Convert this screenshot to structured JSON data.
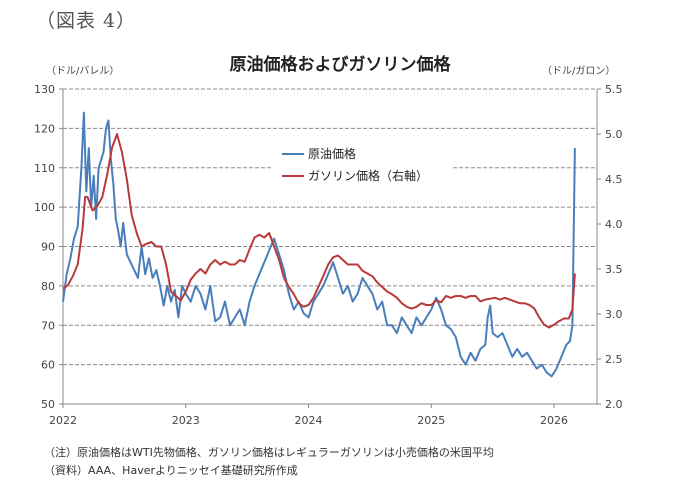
{
  "figure_label": "（図表 4）",
  "notes": {
    "note": "（注）原油価格はWTI先物価格、ガソリン価格はレギュラーガソリンは小売価格の米国平均",
    "source": "（資料）AAA、Haverよりニッセイ基礎研究所作成"
  },
  "chart_data": {
    "type": "line",
    "title": "原油価格およびガソリン価格",
    "ylabel_left": "（ドル/バレル）",
    "ylabel_right": "（ドル/ガロン）",
    "xlabel": "",
    "ylim_left": [
      50,
      130
    ],
    "ylim_right": [
      2.0,
      5.5
    ],
    "yticks_left": [
      "50",
      "60",
      "70",
      "80",
      "90",
      "100",
      "110",
      "120",
      "130"
    ],
    "yticks_right": [
      "2.0",
      "2.5",
      "3.0",
      "3.5",
      "4.0",
      "4.5",
      "5.0",
      "5.5"
    ],
    "xlim": [
      2022.0,
      2026.35
    ],
    "xticks": [
      "2022",
      "2023",
      "2024",
      "2025",
      "2026"
    ],
    "grid": true,
    "legend_position": "top-center",
    "series": [
      {
        "name": "原油価格",
        "axis": "left",
        "color": "#4a7ebb",
        "x": [
          2022.0,
          2022.03,
          2022.06,
          2022.09,
          2022.12,
          2022.15,
          2022.17,
          2022.19,
          2022.21,
          2022.23,
          2022.25,
          2022.27,
          2022.29,
          2022.31,
          2022.33,
          2022.35,
          2022.37,
          2022.39,
          2022.41,
          2022.43,
          2022.45,
          2022.47,
          2022.49,
          2022.52,
          2022.55,
          2022.58,
          2022.61,
          2022.64,
          2022.67,
          2022.7,
          2022.73,
          2022.76,
          2022.79,
          2022.82,
          2022.85,
          2022.88,
          2022.91,
          2022.94,
          2022.97,
          2023.0,
          2023.04,
          2023.08,
          2023.12,
          2023.16,
          2023.2,
          2023.24,
          2023.28,
          2023.32,
          2023.36,
          2023.4,
          2023.44,
          2023.48,
          2023.52,
          2023.56,
          2023.6,
          2023.64,
          2023.68,
          2023.72,
          2023.76,
          2023.8,
          2023.84,
          2023.88,
          2023.92,
          2023.96,
          2024.0,
          2024.04,
          2024.08,
          2024.12,
          2024.16,
          2024.2,
          2024.24,
          2024.28,
          2024.32,
          2024.36,
          2024.4,
          2024.44,
          2024.48,
          2024.52,
          2024.56,
          2024.6,
          2024.64,
          2024.68,
          2024.72,
          2024.76,
          2024.8,
          2024.84,
          2024.88,
          2024.92,
          2024.96,
          2025.0,
          2025.04,
          2025.08,
          2025.12,
          2025.16,
          2025.2,
          2025.24,
          2025.28,
          2025.32,
          2025.36,
          2025.4,
          2025.44,
          2025.46,
          2025.48,
          2025.5,
          2025.54,
          2025.58,
          2025.62,
          2025.66,
          2025.7,
          2025.74,
          2025.78,
          2025.82,
          2025.86,
          2025.9,
          2025.94,
          2025.98,
          2026.02,
          2026.06,
          2026.1,
          2026.13,
          2026.15,
          2026.17
        ],
        "values": [
          76,
          83,
          87,
          92,
          95,
          110,
          124,
          104,
          115,
          100,
          108,
          97,
          110,
          112,
          114,
          120,
          122,
          112,
          106,
          97,
          94,
          90,
          96,
          88,
          86,
          84,
          82,
          90,
          83,
          87,
          82,
          84,
          80,
          75,
          80,
          76,
          79,
          72,
          80,
          78,
          76,
          80,
          78,
          74,
          80,
          71,
          72,
          76,
          70,
          72,
          74,
          70,
          76,
          80,
          83,
          86,
          89,
          92,
          88,
          84,
          78,
          74,
          76,
          73,
          72,
          76,
          78,
          80,
          83,
          86,
          82,
          78,
          80,
          76,
          78,
          82,
          80,
          78,
          74,
          76,
          70,
          70,
          68,
          72,
          70,
          68,
          72,
          70,
          72,
          74,
          77,
          74,
          70,
          69,
          67,
          62,
          60,
          63,
          61,
          64,
          65,
          72,
          75,
          68,
          67,
          68,
          65,
          62,
          64,
          62,
          63,
          61,
          59,
          60,
          58,
          57,
          59,
          62,
          65,
          66,
          70,
          115
        ]
      },
      {
        "name": "ガソリン価格（右軸）",
        "axis": "right",
        "color": "#b83a3a",
        "x": [
          2022.0,
          2022.04,
          2022.08,
          2022.12,
          2022.16,
          2022.18,
          2022.2,
          2022.24,
          2022.28,
          2022.32,
          2022.36,
          2022.4,
          2022.44,
          2022.48,
          2022.52,
          2022.56,
          2022.6,
          2022.64,
          2022.68,
          2022.72,
          2022.76,
          2022.8,
          2022.84,
          2022.88,
          2022.92,
          2022.96,
          2023.0,
          2023.04,
          2023.08,
          2023.12,
          2023.16,
          2023.2,
          2023.24,
          2023.28,
          2023.32,
          2023.36,
          2023.4,
          2023.44,
          2023.48,
          2023.52,
          2023.56,
          2023.6,
          2023.64,
          2023.68,
          2023.72,
          2023.76,
          2023.8,
          2023.84,
          2023.88,
          2023.92,
          2023.96,
          2024.0,
          2024.04,
          2024.08,
          2024.12,
          2024.16,
          2024.2,
          2024.24,
          2024.28,
          2024.32,
          2024.36,
          2024.4,
          2024.44,
          2024.48,
          2024.52,
          2024.56,
          2024.6,
          2024.64,
          2024.68,
          2024.72,
          2024.76,
          2024.8,
          2024.84,
          2024.88,
          2024.92,
          2024.96,
          2025.0,
          2025.04,
          2025.08,
          2025.12,
          2025.16,
          2025.2,
          2025.24,
          2025.28,
          2025.32,
          2025.36,
          2025.4,
          2025.44,
          2025.48,
          2025.52,
          2025.56,
          2025.6,
          2025.64,
          2025.68,
          2025.72,
          2025.76,
          2025.8,
          2025.84,
          2025.88,
          2025.92,
          2025.96,
          2026.0,
          2026.04,
          2026.08,
          2026.12,
          2026.15,
          2026.17
        ],
        "values": [
          3.28,
          3.32,
          3.42,
          3.55,
          3.95,
          4.3,
          4.3,
          4.15,
          4.2,
          4.3,
          4.55,
          4.85,
          5.0,
          4.8,
          4.5,
          4.1,
          3.9,
          3.75,
          3.78,
          3.8,
          3.75,
          3.75,
          3.55,
          3.25,
          3.2,
          3.15,
          3.25,
          3.38,
          3.45,
          3.5,
          3.45,
          3.55,
          3.6,
          3.55,
          3.58,
          3.55,
          3.55,
          3.6,
          3.58,
          3.72,
          3.85,
          3.88,
          3.85,
          3.9,
          3.75,
          3.6,
          3.4,
          3.3,
          3.22,
          3.12,
          3.08,
          3.1,
          3.18,
          3.3,
          3.42,
          3.55,
          3.63,
          3.65,
          3.6,
          3.55,
          3.55,
          3.55,
          3.48,
          3.45,
          3.42,
          3.35,
          3.3,
          3.25,
          3.22,
          3.18,
          3.12,
          3.08,
          3.06,
          3.08,
          3.12,
          3.1,
          3.1,
          3.15,
          3.13,
          3.2,
          3.18,
          3.2,
          3.2,
          3.18,
          3.2,
          3.2,
          3.14,
          3.16,
          3.17,
          3.18,
          3.16,
          3.18,
          3.16,
          3.14,
          3.12,
          3.12,
          3.1,
          3.06,
          2.96,
          2.88,
          2.85,
          2.88,
          2.92,
          2.95,
          2.95,
          3.05,
          3.45
        ]
      }
    ]
  }
}
